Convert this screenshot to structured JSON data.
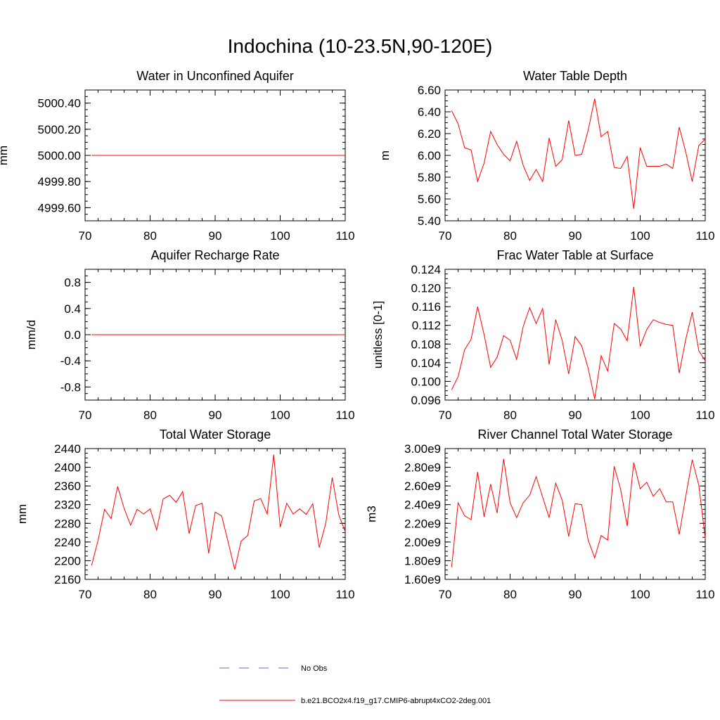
{
  "title": "Indochina (10-23.5N,90-120E)",
  "colors": {
    "model": "#ff0000",
    "obs": "#6a6acd",
    "axis": "#000000"
  },
  "legend": {
    "obs_label": "No Obs",
    "model_label": "b.e21.BCO2x4.f19_g17.CMIP6-abrupt4xCO2-2deg.001"
  },
  "chart_data": [
    {
      "type": "line",
      "title": "Water in Unconfined Aquifer",
      "ylabel": "mm",
      "xlim": [
        70,
        110
      ],
      "ylim": [
        4999.5,
        5000.5
      ],
      "yticks": [
        4999.6,
        4999.8,
        5000.0,
        5000.2,
        5000.4
      ],
      "ytick_labels": [
        "4999.60",
        "4999.80",
        "5000.00",
        "5000.20",
        "5000.40"
      ],
      "xticks": [
        70,
        80,
        90,
        100,
        110
      ],
      "x_start": 71,
      "values": [
        5000,
        5000,
        5000,
        5000,
        5000,
        5000,
        5000,
        5000,
        5000,
        5000,
        5000,
        5000,
        5000,
        5000,
        5000,
        5000,
        5000,
        5000,
        5000,
        5000,
        5000,
        5000,
        5000,
        5000,
        5000,
        5000,
        5000,
        5000,
        5000,
        5000,
        5000,
        5000,
        5000,
        5000,
        5000,
        5000,
        5000,
        5000,
        5000,
        5000
      ]
    },
    {
      "type": "line",
      "title": "Water Table Depth",
      "ylabel": "m",
      "xlim": [
        70,
        110
      ],
      "ylim": [
        5.4,
        6.6
      ],
      "yticks": [
        5.4,
        5.6,
        5.8,
        6.0,
        6.2,
        6.4,
        6.6
      ],
      "ytick_labels": [
        "5.40",
        "5.60",
        "5.80",
        "6.00",
        "6.20",
        "6.40",
        "6.60"
      ],
      "xticks": [
        70,
        80,
        90,
        100,
        110
      ],
      "x_start": 71,
      "values": [
        6.41,
        6.29,
        6.07,
        6.05,
        5.76,
        5.93,
        6.22,
        6.1,
        6.01,
        5.95,
        6.13,
        5.91,
        5.77,
        5.87,
        5.76,
        6.16,
        5.9,
        5.96,
        6.32,
        6.0,
        6.01,
        6.23,
        6.52,
        6.17,
        6.22,
        5.89,
        5.88,
        5.99,
        5.51,
        6.07,
        5.9,
        5.9,
        5.9,
        5.92,
        5.88,
        6.26,
        6.03,
        5.76,
        6.09,
        6.15
      ]
    },
    {
      "type": "line",
      "title": "Aquifer Recharge Rate",
      "ylabel": "mm/d",
      "xlim": [
        70,
        110
      ],
      "ylim": [
        -1.0,
        1.0
      ],
      "yticks": [
        -0.8,
        -0.4,
        0.0,
        0.4,
        0.8
      ],
      "ytick_labels": [
        "-0.8",
        "-0.4",
        "0.0",
        "0.4",
        "0.8"
      ],
      "xticks": [
        70,
        80,
        90,
        100,
        110
      ],
      "x_start": 71,
      "values": [
        0,
        0,
        0,
        0,
        0,
        0,
        0,
        0,
        0,
        0,
        0,
        0,
        0,
        0,
        0,
        0,
        0,
        0,
        0,
        0,
        0,
        0,
        0,
        0,
        0,
        0,
        0,
        0,
        0,
        0,
        0,
        0,
        0,
        0,
        0,
        0,
        0,
        0,
        0,
        0
      ]
    },
    {
      "type": "line",
      "title": "Frac Water Table at Surface",
      "ylabel": "unitless [0-1]",
      "xlim": [
        70,
        110
      ],
      "ylim": [
        0.096,
        0.124
      ],
      "yticks": [
        0.096,
        0.1,
        0.104,
        0.108,
        0.112,
        0.116,
        0.12,
        0.124
      ],
      "ytick_labels": [
        "0.096",
        "0.100",
        "0.104",
        "0.108",
        "0.112",
        "0.116",
        "0.120",
        "0.124"
      ],
      "xticks": [
        70,
        80,
        90,
        100,
        110
      ],
      "x_start": 71,
      "values": [
        0.0982,
        0.101,
        0.1068,
        0.109,
        0.116,
        0.11,
        0.103,
        0.1052,
        0.1098,
        0.1088,
        0.1047,
        0.1117,
        0.1158,
        0.1124,
        0.1156,
        0.1036,
        0.1132,
        0.1088,
        0.1016,
        0.1096,
        0.1076,
        0.1028,
        0.0962,
        0.1055,
        0.1022,
        0.1124,
        0.1112,
        0.1087,
        0.1202,
        0.1075,
        0.1111,
        0.1132,
        0.1126,
        0.1122,
        0.112,
        0.1018,
        0.109,
        0.1148,
        0.1066,
        0.1044
      ]
    },
    {
      "type": "line",
      "title": "Total Water Storage",
      "ylabel": "mm",
      "xlim": [
        70,
        110
      ],
      "ylim": [
        2160,
        2440
      ],
      "yticks": [
        2160,
        2200,
        2240,
        2280,
        2320,
        2360,
        2400,
        2440
      ],
      "ytick_labels": [
        "2160",
        "2200",
        "2240",
        "2280",
        "2320",
        "2360",
        "2400",
        "2440"
      ],
      "xticks": [
        70,
        80,
        90,
        100,
        110
      ],
      "x_start": 71,
      "values": [
        2190,
        2244,
        2310,
        2290,
        2359,
        2312,
        2276,
        2310,
        2300,
        2311,
        2266,
        2332,
        2340,
        2325,
        2348,
        2258,
        2318,
        2323,
        2216,
        2304,
        2296,
        2240,
        2181,
        2242,
        2254,
        2328,
        2333,
        2300,
        2427,
        2272,
        2323,
        2300,
        2311,
        2299,
        2322,
        2228,
        2280,
        2378,
        2298,
        2262
      ]
    },
    {
      "type": "line",
      "title": "River Channel Total Water Storage",
      "ylabel": "m3",
      "xlim": [
        70,
        110
      ],
      "ylim": [
        1600000000.0,
        3000000000.0
      ],
      "yticks": [
        1600000000.0,
        1800000000.0,
        2000000000.0,
        2200000000.0,
        2400000000.0,
        2600000000.0,
        2800000000.0,
        3000000000.0
      ],
      "ytick_labels": [
        "1.60e9",
        "1.80e9",
        "2.00e9",
        "2.20e9",
        "2.40e9",
        "2.60e9",
        "2.80e9",
        "3.00e9"
      ],
      "xticks": [
        70,
        80,
        90,
        100,
        110
      ],
      "x_start": 71,
      "values": [
        1730000000.0,
        2420000000.0,
        2280000000.0,
        2240000000.0,
        2750000000.0,
        2270000000.0,
        2620000000.0,
        2310000000.0,
        2890000000.0,
        2420000000.0,
        2260000000.0,
        2420000000.0,
        2500000000.0,
        2700000000.0,
        2480000000.0,
        2260000000.0,
        2630000000.0,
        2450000000.0,
        2060000000.0,
        2410000000.0,
        2400000000.0,
        2020000000.0,
        1830000000.0,
        2070000000.0,
        2020000000.0,
        2810000000.0,
        2560000000.0,
        2170000000.0,
        2850000000.0,
        2570000000.0,
        2640000000.0,
        2490000000.0,
        2570000000.0,
        2430000000.0,
        2430000000.0,
        2080000000.0,
        2490000000.0,
        2880000000.0,
        2610000000.0,
        2040000000.0
      ]
    }
  ]
}
